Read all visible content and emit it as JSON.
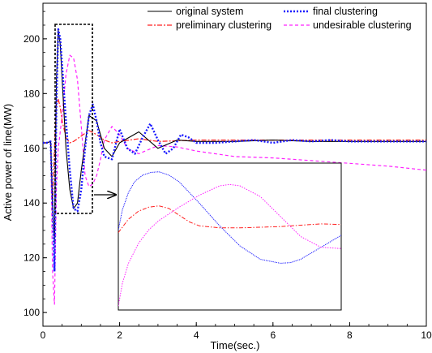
{
  "chart_data": {
    "type": "line",
    "xlabel": "Time(sec.)",
    "ylabel": "Active power of line(MW)",
    "xlim": [
      0,
      10
    ],
    "ylim": [
      95,
      213
    ],
    "xticks": [
      "0",
      "2",
      "4",
      "6",
      "8",
      "10"
    ],
    "yticks": [
      "100",
      "120",
      "140",
      "160",
      "180",
      "200"
    ],
    "legend_position": "top",
    "series": [
      {
        "name": "original system",
        "color": "#000000",
        "style": "solid",
        "x": [
          0,
          0.1,
          0.2,
          0.25,
          0.3,
          0.35,
          0.4,
          0.45,
          0.5,
          0.6,
          0.7,
          0.8,
          0.9,
          1.0,
          1.2,
          1.4,
          1.6,
          1.8,
          2.0,
          2.5,
          3,
          3.5,
          4,
          5,
          6,
          7,
          8,
          9,
          10
        ],
        "y": [
          162,
          162,
          162.5,
          140,
          125,
          185,
          203,
          198,
          185,
          160,
          145,
          138,
          140,
          152,
          172,
          170,
          160,
          157,
          162,
          166,
          160,
          163,
          162.5,
          162.5,
          163,
          162.5,
          162.5,
          162.5,
          162.5
        ]
      },
      {
        "name": "final clustering",
        "color": "#1a1aff",
        "style": "dotted",
        "x": [
          0,
          0.1,
          0.2,
          0.25,
          0.3,
          0.35,
          0.4,
          0.45,
          0.5,
          0.6,
          0.7,
          0.8,
          0.9,
          1.0,
          1.1,
          1.2,
          1.3,
          1.4,
          1.5,
          1.6,
          1.8,
          2.0,
          2.2,
          2.4,
          2.6,
          2.8,
          3.0,
          3.2,
          3.4,
          3.6,
          3.8,
          4.0,
          4.5,
          5,
          5.5,
          6,
          6.5,
          7,
          7.5,
          8,
          9,
          10
        ],
        "y": [
          162,
          162,
          162.5,
          140,
          115,
          175,
          203.5,
          200,
          190,
          170,
          152,
          138,
          137,
          145,
          160,
          172,
          176,
          170,
          162,
          157,
          156,
          167,
          160,
          158,
          164,
          169,
          163,
          158,
          160,
          165,
          164,
          162,
          162,
          162.5,
          163,
          162,
          163,
          162.5,
          163,
          162.5,
          162.5,
          162.5
        ]
      },
      {
        "name": "preliminary clustering",
        "color": "#ff2020",
        "style": "dashdot",
        "x": [
          0,
          0.1,
          0.2,
          0.25,
          0.3,
          0.35,
          0.4,
          0.45,
          0.5,
          0.6,
          0.7,
          0.8,
          1.0,
          1.2,
          1.4,
          1.6,
          1.8,
          2.0,
          2.5,
          3,
          4,
          5,
          6,
          7,
          8,
          9,
          10
        ],
        "y": [
          162,
          162,
          162.5,
          138,
          160,
          176,
          178,
          175,
          170,
          164,
          162,
          162.5,
          164.5,
          166.5,
          165,
          163,
          162,
          162.5,
          163.5,
          162.5,
          163,
          163,
          163,
          163,
          163,
          163,
          163
        ]
      },
      {
        "name": "undesirable clustering",
        "color": "#ff20ff",
        "style": "dashed",
        "x": [
          0,
          0.1,
          0.2,
          0.25,
          0.3,
          0.35,
          0.4,
          0.5,
          0.6,
          0.7,
          0.8,
          0.9,
          1.0,
          1.1,
          1.2,
          1.3,
          1.4,
          1.5,
          1.6,
          1.8,
          2.0,
          2.2,
          2.5,
          3.0,
          3.5,
          4.0,
          5,
          6,
          7,
          8,
          9,
          10
        ],
        "y": [
          162,
          162,
          162.5,
          115,
          103,
          145,
          160,
          172,
          187,
          194,
          193,
          185,
          168,
          150,
          146,
          147,
          150,
          156,
          163,
          168,
          165,
          160,
          158,
          161,
          160.5,
          159,
          157,
          156.5,
          155.5,
          154.5,
          153.5,
          152
        ]
      }
    ],
    "inset": {
      "description_source": "zoom of dashed box region t = 0.2 to 1.3 s",
      "xlim": [
        0.2,
        1.3
      ],
      "ylim": [
        100,
        210
      ],
      "series": [
        {
          "name": "final clustering",
          "color": "#1a1aff",
          "style": "dotted",
          "x": [
            0.2,
            0.22,
            0.25,
            0.28,
            0.32,
            0.36,
            0.4,
            0.45,
            0.5,
            0.6,
            0.7,
            0.8,
            0.9,
            1.0,
            1.05,
            1.1,
            1.2,
            1.3
          ],
          "y": [
            160,
            175,
            188,
            196,
            201,
            203,
            203.5,
            201,
            196,
            180,
            163,
            148,
            138,
            135,
            135.5,
            138,
            147,
            156
          ]
        },
        {
          "name": "preliminary clustering",
          "color": "#ff2020",
          "style": "dashdot",
          "x": [
            0.2,
            0.25,
            0.3,
            0.35,
            0.4,
            0.45,
            0.5,
            0.55,
            0.6,
            0.7,
            0.8,
            0.9,
            1.0,
            1.1,
            1.2,
            1.3
          ],
          "y": [
            158,
            168,
            174,
            177,
            178,
            176,
            171,
            166,
            163,
            161.5,
            161.5,
            162,
            162.5,
            163.5,
            164.5,
            164
          ]
        },
        {
          "name": "undesirable clustering",
          "color": "#ff20ff",
          "style": "dashed",
          "x": [
            0.2,
            0.22,
            0.25,
            0.3,
            0.35,
            0.4,
            0.5,
            0.6,
            0.7,
            0.75,
            0.8,
            0.9,
            1.0,
            1.1,
            1.2,
            1.3
          ],
          "y": [
            103,
            120,
            135,
            150,
            160,
            167,
            177,
            186,
            193,
            194,
            193,
            185,
            170,
            155,
            147,
            146
          ]
        }
      ]
    }
  }
}
